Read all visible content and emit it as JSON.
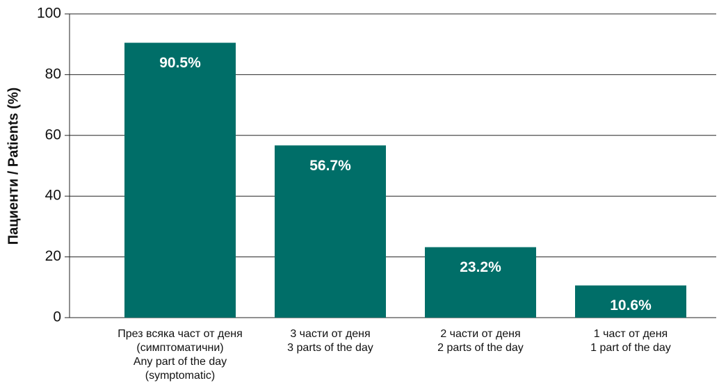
{
  "chart_data": {
    "type": "bar",
    "y_label": "Пациенти / Patients (%)",
    "categories": [
      [
        "През всяка част от деня",
        "(симптоматични)",
        "Any part of the day",
        "(symptomatic)"
      ],
      [
        "3 части от деня",
        "3 parts of the day"
      ],
      [
        "2 части от деня",
        "2 parts of the day"
      ],
      [
        "1 част от деня",
        "1 part of the day"
      ]
    ],
    "values": [
      90.5,
      56.7,
      23.2,
      10.6
    ],
    "value_labels": [
      "90.5%",
      "56.7%",
      "23.2%",
      "10.6%"
    ],
    "color": "#006e68",
    "ylim": [
      0,
      100
    ],
    "yticks": [
      0,
      20,
      40,
      60,
      80,
      100
    ],
    "grid": true
  }
}
